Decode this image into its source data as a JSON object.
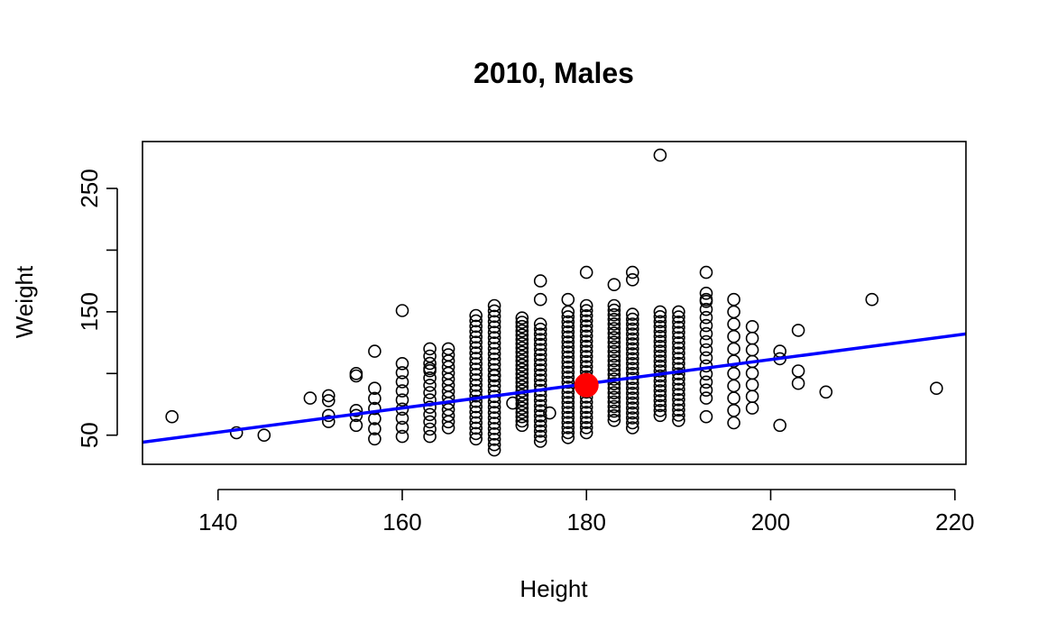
{
  "chart_data": {
    "type": "scatter",
    "title": "2010, Males",
    "xlabel": "Height",
    "ylabel": "Weight",
    "xlim": [
      131.8,
      221.2
    ],
    "ylim": [
      26.4,
      288.0
    ],
    "xticks": [
      140,
      160,
      180,
      200,
      220
    ],
    "yticks": [
      50,
      100,
      150,
      200,
      250
    ],
    "ytick_labels": [
      "50",
      "",
      "150",
      "",
      "250"
    ],
    "grid": false,
    "point_style": "open-circle",
    "points_color": "#000000",
    "fit_line": {
      "color": "#0000ff",
      "x": [
        131.8,
        221.2
      ],
      "y": [
        44.3,
        132.1
      ]
    },
    "mean_point": {
      "x": 180,
      "y": 90.5,
      "color": "#ff0000"
    },
    "columns": [
      {
        "x": 157,
        "ymin": 47,
        "ymax": 88,
        "n": 6
      },
      {
        "x": 160,
        "ymin": 49,
        "ymax": 108,
        "n": 9
      },
      {
        "x": 163,
        "ymin": 49,
        "ymax": 120,
        "n": 13
      },
      {
        "x": 165,
        "ymin": 56,
        "ymax": 120,
        "n": 14
      },
      {
        "x": 168,
        "ymin": 47,
        "ymax": 147,
        "n": 24
      },
      {
        "x": 170,
        "ymin": 38,
        "ymax": 155,
        "n": 28
      },
      {
        "x": 173,
        "ymin": 58,
        "ymax": 145,
        "n": 26
      },
      {
        "x": 175,
        "ymin": 45,
        "ymax": 140,
        "n": 24
      },
      {
        "x": 178,
        "ymin": 48,
        "ymax": 150,
        "n": 26
      },
      {
        "x": 180,
        "ymin": 52,
        "ymax": 155,
        "n": 26
      },
      {
        "x": 183,
        "ymin": 62,
        "ymax": 155,
        "n": 26
      },
      {
        "x": 185,
        "ymin": 56,
        "ymax": 148,
        "n": 24
      },
      {
        "x": 188,
        "ymin": 66,
        "ymax": 150,
        "n": 22
      },
      {
        "x": 190,
        "ymin": 62,
        "ymax": 150,
        "n": 22
      },
      {
        "x": 193,
        "ymin": 80,
        "ymax": 165,
        "n": 14
      },
      {
        "x": 196,
        "ymin": 70,
        "ymax": 160,
        "n": 10
      },
      {
        "x": 198,
        "ymin": 72,
        "ymax": 138,
        "n": 8
      }
    ],
    "points": [
      [
        135,
        65
      ],
      [
        142,
        52
      ],
      [
        145,
        50
      ],
      [
        150,
        80
      ],
      [
        152,
        82
      ],
      [
        152,
        78
      ],
      [
        152,
        66
      ],
      [
        152,
        61
      ],
      [
        155,
        100
      ],
      [
        155,
        98
      ],
      [
        155,
        70
      ],
      [
        155,
        66
      ],
      [
        155,
        58
      ],
      [
        157,
        118
      ],
      [
        160,
        151
      ],
      [
        163,
        104
      ],
      [
        170,
        98
      ],
      [
        172,
        76
      ],
      [
        175,
        175
      ],
      [
        175,
        160
      ],
      [
        176,
        68
      ],
      [
        178,
        160
      ],
      [
        180,
        182
      ],
      [
        183,
        172
      ],
      [
        185,
        182
      ],
      [
        185,
        176
      ],
      [
        188,
        277
      ],
      [
        193,
        182
      ],
      [
        193,
        160
      ],
      [
        193,
        65
      ],
      [
        196,
        60
      ],
      [
        201,
        118
      ],
      [
        201,
        112
      ],
      [
        201,
        58
      ],
      [
        203,
        135
      ],
      [
        203,
        102
      ],
      [
        203,
        92
      ],
      [
        206,
        85
      ],
      [
        211,
        160
      ],
      [
        218,
        88
      ]
    ]
  }
}
